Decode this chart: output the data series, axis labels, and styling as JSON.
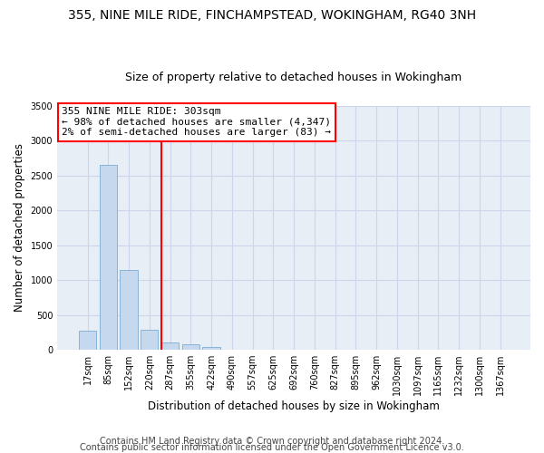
{
  "title1": "355, NINE MILE RIDE, FINCHAMPSTEAD, WOKINGHAM, RG40 3NH",
  "title2": "Size of property relative to detached houses in Wokingham",
  "xlabel": "Distribution of detached houses by size in Wokingham",
  "ylabel": "Number of detached properties",
  "bar_color": "#c5d8ee",
  "bar_edge_color": "#7aadd4",
  "categories": [
    "17sqm",
    "85sqm",
    "152sqm",
    "220sqm",
    "287sqm",
    "355sqm",
    "422sqm",
    "490sqm",
    "557sqm",
    "625sqm",
    "692sqm",
    "760sqm",
    "827sqm",
    "895sqm",
    "962sqm",
    "1030sqm",
    "1097sqm",
    "1165sqm",
    "1232sqm",
    "1300sqm",
    "1367sqm"
  ],
  "values": [
    280,
    2650,
    1150,
    290,
    105,
    75,
    45,
    0,
    0,
    0,
    0,
    0,
    0,
    0,
    0,
    0,
    0,
    0,
    0,
    0,
    0
  ],
  "prop_line_index": 3.6,
  "property_line_label": "355 NINE MILE RIDE: 303sqm",
  "annotation_line1": "← 98% of detached houses are smaller (4,347)",
  "annotation_line2": "2% of semi-detached houses are larger (83) →",
  "ylim": [
    0,
    3500
  ],
  "yticks": [
    0,
    500,
    1000,
    1500,
    2000,
    2500,
    3000,
    3500
  ],
  "grid_color": "#cdd6e8",
  "background_color": "#e8eef6",
  "footnote1": "Contains HM Land Registry data © Crown copyright and database right 2024.",
  "footnote2": "Contains public sector information licensed under the Open Government Licence v3.0.",
  "title1_fontsize": 10,
  "title2_fontsize": 9,
  "annotation_fontsize": 8,
  "footnote_fontsize": 7,
  "xlabel_fontsize": 8.5,
  "ylabel_fontsize": 8.5,
  "tick_fontsize": 7
}
